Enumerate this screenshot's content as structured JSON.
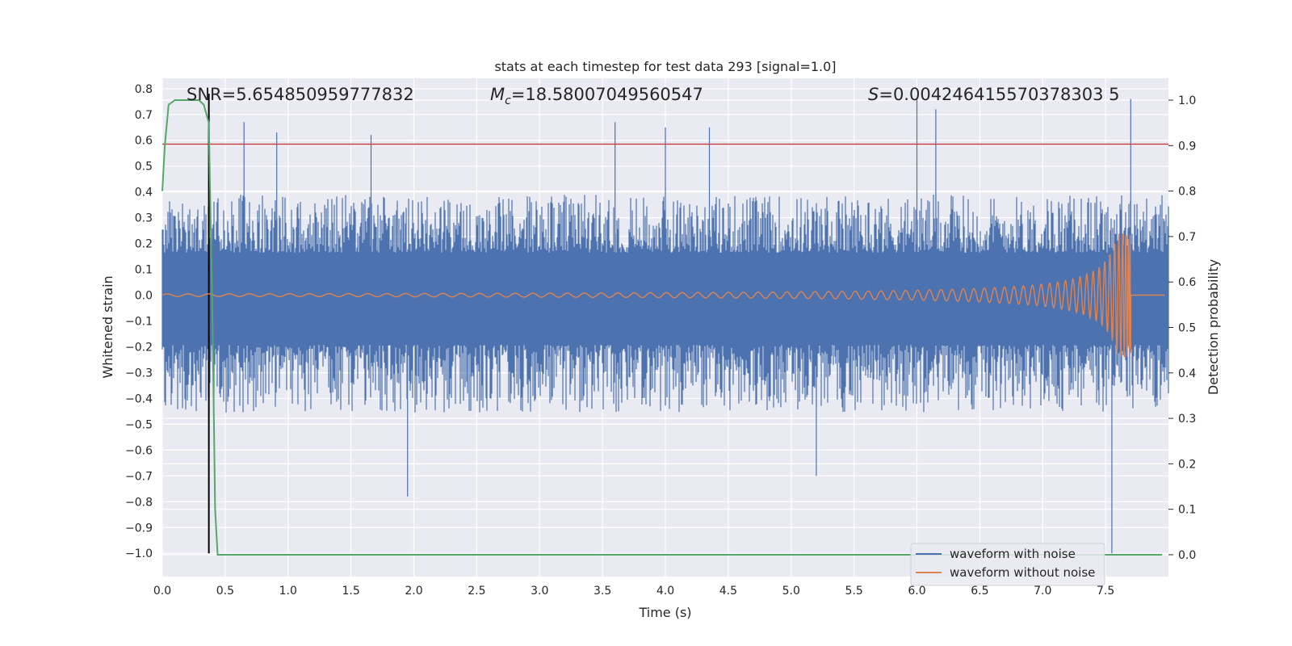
{
  "chart_data": {
    "type": "line",
    "title": "stats at each timestep for test data 293 [signal=1.0]",
    "xlabel": "Time (s)",
    "ylabel": "Whitened strain",
    "y2label": "Detection probability",
    "xlim": [
      0.0,
      8.0
    ],
    "ylim": [
      -1.09,
      0.84
    ],
    "y2lim": [
      -0.048,
      1.048
    ],
    "x_ticks": [
      "0.0",
      "0.5",
      "1.0",
      "1.5",
      "2.0",
      "2.5",
      "3.0",
      "3.5",
      "4.0",
      "4.5",
      "5.0",
      "5.5",
      "6.0",
      "6.5",
      "7.0",
      "7.5"
    ],
    "y_ticks": [
      "−1.0",
      "−0.9",
      "−0.8",
      "−0.7",
      "−0.6",
      "−0.5",
      "−0.4",
      "−0.3",
      "−0.2",
      "−0.1",
      "0.0",
      "0.1",
      "0.2",
      "0.3",
      "0.4",
      "0.5",
      "0.6",
      "0.7",
      "0.8"
    ],
    "y2_ticks": [
      "0.0",
      "0.1",
      "0.2",
      "0.3",
      "0.4",
      "0.5",
      "0.6",
      "0.7",
      "0.8",
      "0.9",
      "1.0"
    ],
    "grid": true,
    "legend_position": "lower-right",
    "annotations": {
      "snr": "SNR=5.654850959777832",
      "mc_symbol": "M",
      "mc_sub": "c",
      "mc_value": "=18.58007049560547",
      "s_symbol": "S",
      "s_value": "=0.004246415570378303 5"
    },
    "series": [
      {
        "name": "waveform with noise",
        "axis": "left",
        "color": "#4c72b0",
        "envelope": {
          "upper_typical": 0.3,
          "lower_typical": -0.35,
          "peaks": [
            {
              "x": 0.65,
              "y": 0.67
            },
            {
              "x": 0.91,
              "y": 0.63
            },
            {
              "x": 1.66,
              "y": 0.62
            },
            {
              "x": 1.95,
              "y": -0.78
            },
            {
              "x": 3.6,
              "y": 0.67
            },
            {
              "x": 4.0,
              "y": 0.65
            },
            {
              "x": 4.35,
              "y": 0.65
            },
            {
              "x": 5.2,
              "y": -0.7
            },
            {
              "x": 6.0,
              "y": 0.76
            },
            {
              "x": 6.15,
              "y": 0.72
            },
            {
              "x": 7.55,
              "y": -1.0
            },
            {
              "x": 7.7,
              "y": 0.76
            }
          ]
        }
      },
      {
        "name": "waveform without noise",
        "axis": "left",
        "color": "#dd8452",
        "chirp": {
          "start_x": 0.0,
          "merger_x": 7.7,
          "end_x": 8.0,
          "start_amp": 0.005,
          "peak_amp": 0.24
        }
      },
      {
        "name": "detection probability",
        "axis": "right",
        "color": "#55a868",
        "x": [
          0.0,
          0.02,
          0.05,
          0.1,
          0.15,
          0.2,
          0.25,
          0.29,
          0.33,
          0.37,
          0.4,
          0.42,
          0.44,
          8.0
        ],
        "y": [
          0.8,
          0.9,
          0.99,
          1.0,
          1.0,
          1.0,
          1.0,
          1.0,
          0.99,
          0.95,
          0.5,
          0.1,
          0.0,
          0.0
        ]
      }
    ],
    "threshold": {
      "axis": "left",
      "y": 0.585,
      "color": "#c44e52"
    },
    "marker_line": {
      "x": 0.37,
      "y_from": -1.0,
      "y_to": 0.78,
      "color": "#000000"
    }
  }
}
